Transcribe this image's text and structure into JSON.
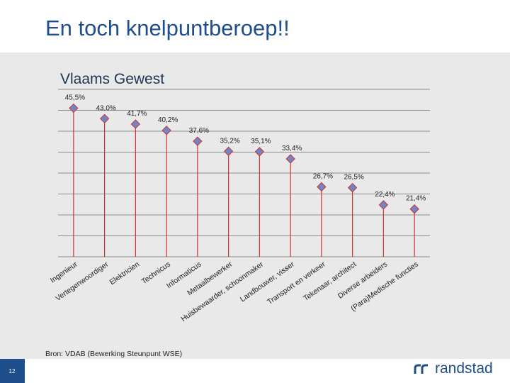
{
  "slide": {
    "title": "En toch knelpuntberoep!!",
    "page_number": "12",
    "source": "Bron: VDAB (Bewerking Steunpunt WSE)",
    "brand": "randstad"
  },
  "colors": {
    "title": "#1f4e8c",
    "stem": "#d32f2f",
    "marker": "#6e86c6",
    "grid": "#8a8a8a"
  },
  "chart_data": {
    "type": "line",
    "title": "Vlaams Gewest",
    "xlabel": "",
    "ylabel": "",
    "ylim": [
      10,
      50
    ],
    "grid": true,
    "categories": [
      "Ingenieur",
      "Vertegenwoordiger",
      "Elektricien",
      "Technicus",
      "Informaticus",
      "Metaalbewerker",
      "Huisbewaarder, schoonmaker",
      "Landbouwer, visser",
      "Transport en verkeer",
      "Tekenaar, architect",
      "Diverse arbeiders",
      "(Para)Medische functies"
    ],
    "values": [
      45.5,
      43.0,
      41.7,
      40.2,
      37.6,
      35.2,
      35.1,
      33.4,
      26.7,
      26.5,
      22.4,
      21.4
    ],
    "value_labels": [
      "45,5%",
      "43,0%",
      "41,7%",
      "40,2%",
      "37,6%",
      "35,2%",
      "35,1%",
      "33,4%",
      "26,7%",
      "26,5%",
      "22,4%",
      "21,4%"
    ]
  }
}
